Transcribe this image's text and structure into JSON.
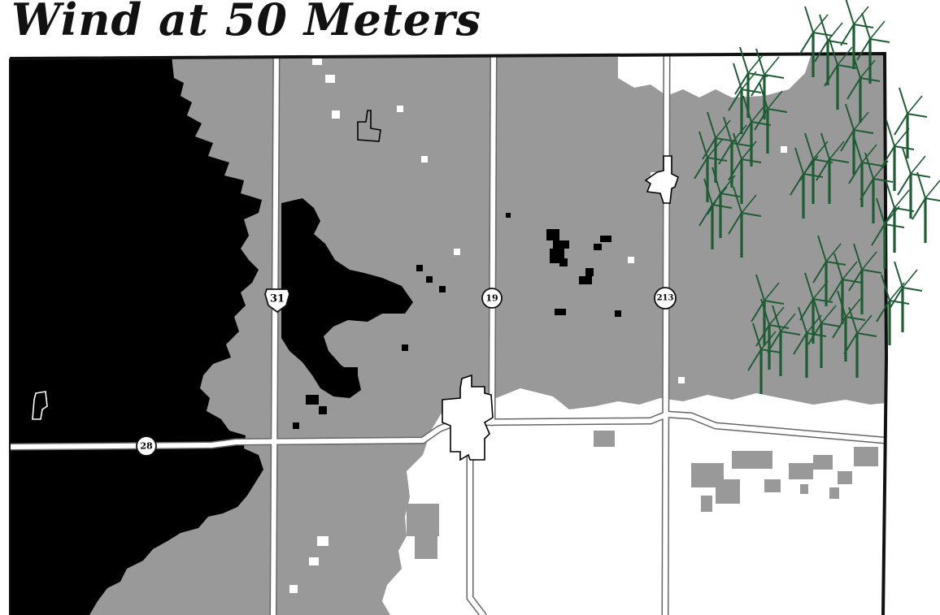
{
  "map": {
    "title": "Wind at 50 Meters",
    "colors": {
      "high_wind": "#000000",
      "medium_wind": "#999999",
      "low_wind": "#ffffff",
      "road": "#ffffff",
      "turbine": "#1e5c34",
      "border": "#111111"
    },
    "roads": [
      {
        "id": "us-31",
        "label": "31",
        "type": "us-highway"
      },
      {
        "id": "m-19",
        "label": "19",
        "type": "state-route"
      },
      {
        "id": "m-213",
        "label": "213",
        "type": "state-route"
      },
      {
        "id": "m-28",
        "label": "28",
        "type": "state-route"
      }
    ],
    "icons": {
      "turbine": "wind-turbine-icon",
      "town": "town-boundary-icon"
    }
  }
}
